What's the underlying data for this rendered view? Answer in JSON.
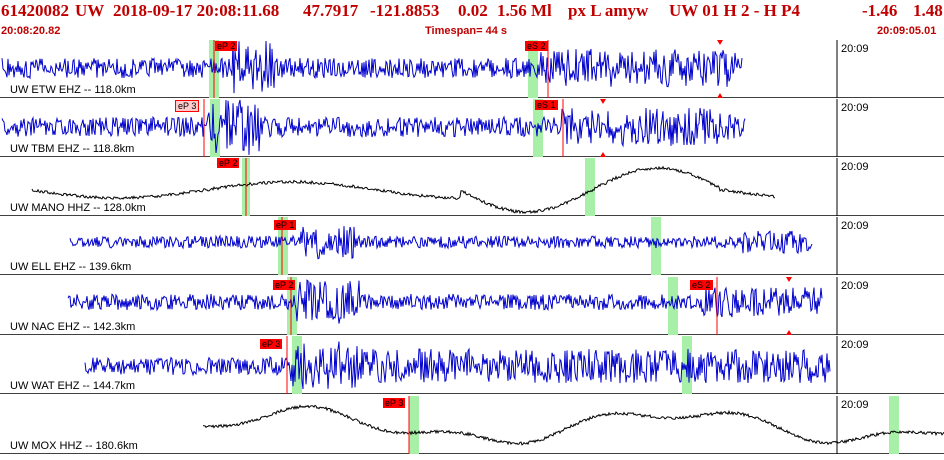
{
  "header": {
    "event_id": "61420082",
    "network": "UW",
    "datetime": "2018-09-17 20:08:11.68",
    "lat": "47.7917",
    "lon": "-121.8853",
    "depth": "0.02",
    "magnitude": "1.56 Ml",
    "type_flags": "px  L amyw",
    "quality": "UW 01  H   2  -  H P4",
    "extra1": "-1.46",
    "extra2": "1.48",
    "start_time": "20:08:20.82",
    "timespan": "Timespan=  44 s",
    "end_time": "20:09:05.01"
  },
  "colors": {
    "header_red": "#c00000",
    "trace_blue": "#0000cc",
    "trace_black": "#000000",
    "pick_red": "#ff0000",
    "window_green": "#a8f0a8",
    "separator": "#000000"
  },
  "time_tick_label": "20:09",
  "traces": [
    {
      "label": "UW ETW EHZ -- 118.0km",
      "color": "blue",
      "picks": [
        {
          "text": "eP 2",
          "style": "solid"
        },
        {
          "text": "eS 2",
          "style": "solid"
        }
      ]
    },
    {
      "label": "UW TBM EHZ -- 118.8km",
      "color": "blue",
      "picks": [
        {
          "text": "eP 3",
          "style": "light"
        },
        {
          "text": "eS 1",
          "style": "solid"
        }
      ]
    },
    {
      "label": "UW MANO HHZ -- 128.0km",
      "color": "black",
      "picks": [
        {
          "text": "eP 2",
          "style": "solid"
        }
      ]
    },
    {
      "label": "UW ELL EHZ -- 139.6km",
      "color": "blue",
      "picks": [
        {
          "text": "eP 1",
          "style": "solid"
        }
      ]
    },
    {
      "label": "UW NAC EHZ -- 142.3km",
      "color": "blue",
      "picks": [
        {
          "text": "eP 2",
          "style": "solid"
        },
        {
          "text": "eS 2",
          "style": "solid"
        }
      ]
    },
    {
      "label": "UW WAT EHZ -- 144.7km",
      "color": "blue",
      "picks": [
        {
          "text": "eP 3",
          "style": "solid"
        }
      ]
    },
    {
      "label": "UW MOX HHZ -- 180.6km",
      "color": "black",
      "picks": [
        {
          "text": "eP 3",
          "style": "solid"
        }
      ]
    }
  ]
}
